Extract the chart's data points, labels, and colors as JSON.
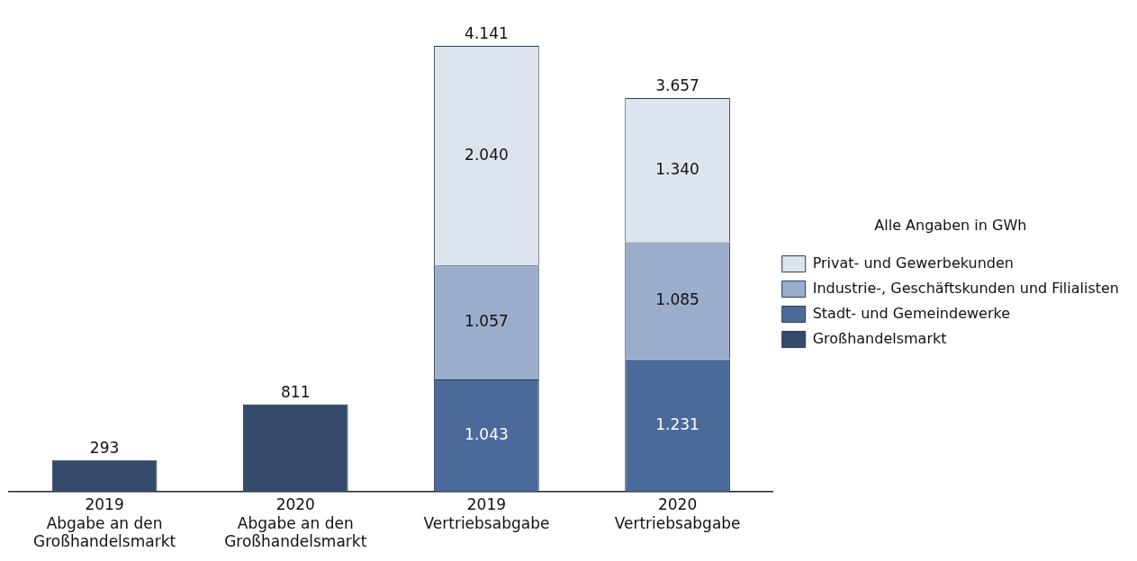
{
  "chart_data": {
    "type": "bar",
    "stacked": true,
    "legend": "right",
    "legend_title": "Alle Angaben in GWh",
    "data_labels": true,
    "categories": [
      "2019\nAbgabe an den\nGroßhandelsmarkt",
      "2020\nAbgabe an den\nGroßhandelsmarkt",
      "2019\nVertriebsabgabe",
      "2020\nVertriebsabgabe"
    ],
    "series": [
      {
        "name": "Großhandelsmarkt",
        "color": "#364b6b",
        "values": [
          293,
          811,
          null,
          null
        ],
        "value_labels": [
          "293",
          "811",
          null,
          null
        ]
      },
      {
        "name": "Stadt- und Gemeindewerke",
        "color": "#4a6a9a",
        "values": [
          null,
          null,
          1043,
          1231
        ],
        "value_labels": [
          null,
          null,
          "1.043",
          "1.231"
        ]
      },
      {
        "name": "Industrie-, Geschäftskunden und Filialisten",
        "color": "#9aaecb",
        "values": [
          null,
          null,
          1057,
          1085
        ],
        "value_labels": [
          null,
          null,
          "1.057",
          "1.085"
        ]
      },
      {
        "name": "Privat- und Gewerbekunden",
        "color": "#dde4ee",
        "values": [
          null,
          null,
          2040,
          1340
        ],
        "value_labels": [
          null,
          null,
          "2.040",
          "1.340"
        ]
      }
    ],
    "totals": [
      null,
      null,
      "4.141",
      "3.657"
    ]
  }
}
